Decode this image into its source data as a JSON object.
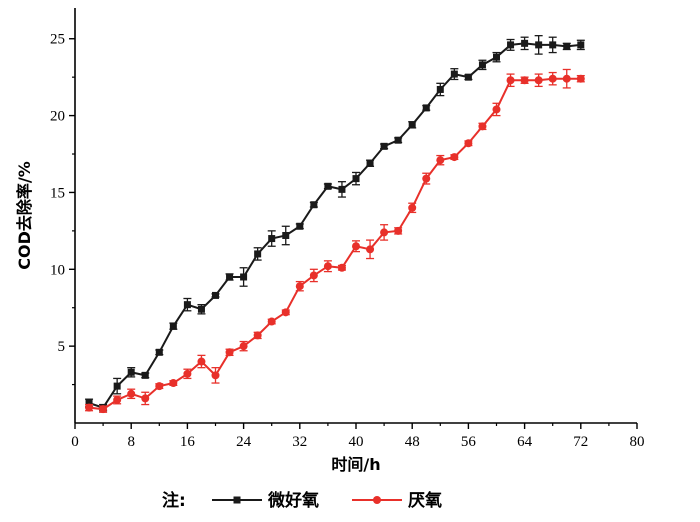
{
  "chart_data": {
    "type": "line",
    "xlabel": "时间/h",
    "ylabel": "COD去除率/%",
    "xlim": [
      0,
      80
    ],
    "ylim": [
      0,
      27
    ],
    "x_ticks": [
      0,
      8,
      16,
      24,
      32,
      40,
      48,
      56,
      64,
      72,
      80
    ],
    "y_ticks": [
      5,
      10,
      15,
      20,
      25
    ],
    "grid": false,
    "legend": {
      "position": "bottom",
      "note_label": "注:"
    },
    "series": [
      {
        "name": "微好氧",
        "color": "#1a1a1a",
        "marker": "square",
        "x": [
          2,
          4,
          6,
          8,
          10,
          12,
          14,
          16,
          18,
          20,
          22,
          24,
          26,
          28,
          30,
          32,
          34,
          36,
          38,
          40,
          42,
          44,
          46,
          48,
          50,
          52,
          54,
          56,
          58,
          60,
          62,
          64,
          66,
          68,
          70,
          72
        ],
        "y": [
          1.3,
          1.0,
          2.4,
          3.3,
          3.1,
          4.6,
          6.3,
          7.7,
          7.4,
          8.3,
          9.5,
          9.5,
          11.0,
          12.0,
          12.2,
          12.8,
          14.2,
          15.4,
          15.2,
          15.9,
          16.9,
          18.0,
          18.4,
          19.4,
          20.5,
          21.7,
          22.7,
          22.5,
          23.3,
          23.8,
          24.6,
          24.7,
          24.6,
          24.6,
          24.5,
          24.6
        ],
        "err": [
          0.25,
          0.2,
          0.5,
          0.3,
          0.15,
          0.15,
          0.2,
          0.4,
          0.3,
          0.1,
          0.2,
          0.6,
          0.4,
          0.5,
          0.6,
          0.15,
          0.15,
          0.15,
          0.5,
          0.4,
          0.2,
          0.15,
          0.15,
          0.2,
          0.15,
          0.4,
          0.35,
          0.15,
          0.3,
          0.3,
          0.35,
          0.4,
          0.6,
          0.5,
          0.2,
          0.3
        ]
      },
      {
        "name": "厌氧",
        "color": "#e8302a",
        "marker": "circle",
        "x": [
          2,
          4,
          6,
          8,
          10,
          12,
          14,
          16,
          18,
          20,
          22,
          24,
          26,
          28,
          30,
          32,
          34,
          36,
          38,
          40,
          42,
          44,
          46,
          48,
          50,
          52,
          54,
          56,
          58,
          60,
          62,
          64,
          66,
          68,
          70,
          72
        ],
        "y": [
          1.0,
          0.9,
          1.5,
          1.9,
          1.6,
          2.4,
          2.6,
          3.2,
          4.0,
          3.1,
          4.6,
          5.0,
          5.7,
          6.6,
          7.2,
          8.9,
          9.6,
          10.2,
          10.1,
          11.5,
          11.3,
          12.4,
          12.5,
          14.0,
          15.9,
          17.1,
          17.3,
          18.2,
          19.3,
          20.4,
          22.3,
          22.3,
          22.3,
          22.4,
          22.4,
          22.4
        ],
        "err": [
          0.2,
          0.2,
          0.25,
          0.3,
          0.4,
          0.15,
          0.15,
          0.3,
          0.4,
          0.5,
          0.2,
          0.3,
          0.2,
          0.15,
          0.15,
          0.3,
          0.4,
          0.35,
          0.15,
          0.35,
          0.6,
          0.5,
          0.2,
          0.3,
          0.35,
          0.3,
          0.15,
          0.15,
          0.2,
          0.4,
          0.4,
          0.2,
          0.4,
          0.4,
          0.6,
          0.2
        ]
      }
    ]
  }
}
